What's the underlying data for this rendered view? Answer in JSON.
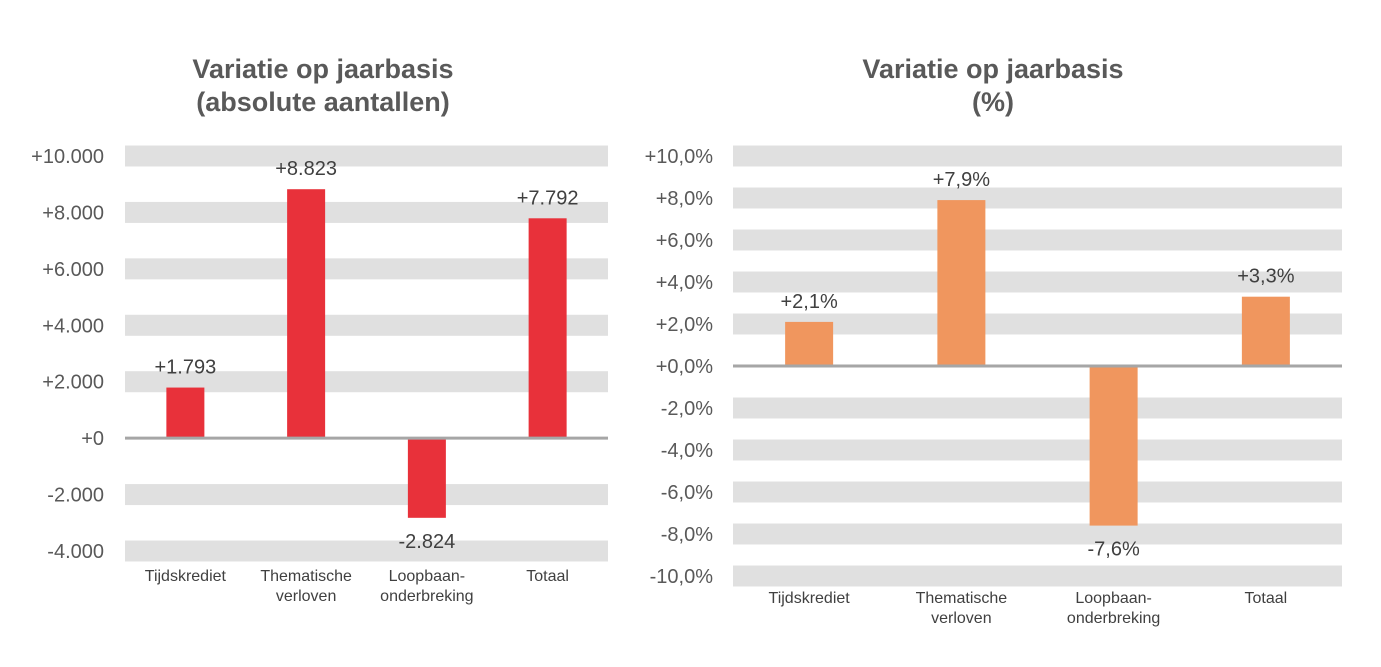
{
  "chart_data": [
    {
      "type": "bar",
      "title": [
        "Variatie op jaarbasis",
        "(absolute aantallen)"
      ],
      "categories": [
        [
          "Tijdskrediet"
        ],
        [
          "Thematische",
          "verloven"
        ],
        [
          "Loopbaan-",
          "onderbreking"
        ],
        [
          "Totaal"
        ]
      ],
      "values": [
        1793,
        8823,
        -2824,
        7792
      ],
      "data_labels": [
        "+1.793",
        "+8.823",
        "-2.824",
        "+7.792"
      ],
      "yticks": [
        10000,
        8000,
        6000,
        4000,
        2000,
        0,
        -2000,
        -4000
      ],
      "ytick_labels": [
        "+10.000",
        "+8.000",
        "+6.000",
        "+4.000",
        "+2.000",
        "+0",
        "-2.000",
        "-4.000"
      ],
      "ylim": [
        -4000,
        10000
      ],
      "bar_color": "#E8313A",
      "band_color": "#E0E0E0",
      "grid": "alternating bands",
      "legend": "none"
    },
    {
      "type": "bar",
      "title": [
        "Variatie op jaarbasis",
        "(%)"
      ],
      "categories": [
        [
          "Tijdskrediet"
        ],
        [
          "Thematische",
          "verloven"
        ],
        [
          "Loopbaan-",
          "onderbreking"
        ],
        [
          "Totaal"
        ]
      ],
      "values": [
        2.1,
        7.9,
        -7.6,
        3.3
      ],
      "data_labels": [
        "+2,1%",
        "+7,9%",
        "-7,6%",
        "+3,3%"
      ],
      "yticks": [
        10,
        8,
        6,
        4,
        2,
        0,
        -2,
        -4,
        -6,
        -8,
        -10
      ],
      "ytick_labels": [
        "+10,0%",
        "+8,0%",
        "+6,0%",
        "+4,0%",
        "+2,0%",
        "+0,0%",
        "-2,0%",
        "-4,0%",
        "-6,0%",
        "-8,0%",
        "-10,0%"
      ],
      "ylim": [
        -10,
        10
      ],
      "bar_color": "#F0965E",
      "band_color": "#E0E0E0",
      "grid": "alternating bands",
      "legend": "none"
    }
  ]
}
